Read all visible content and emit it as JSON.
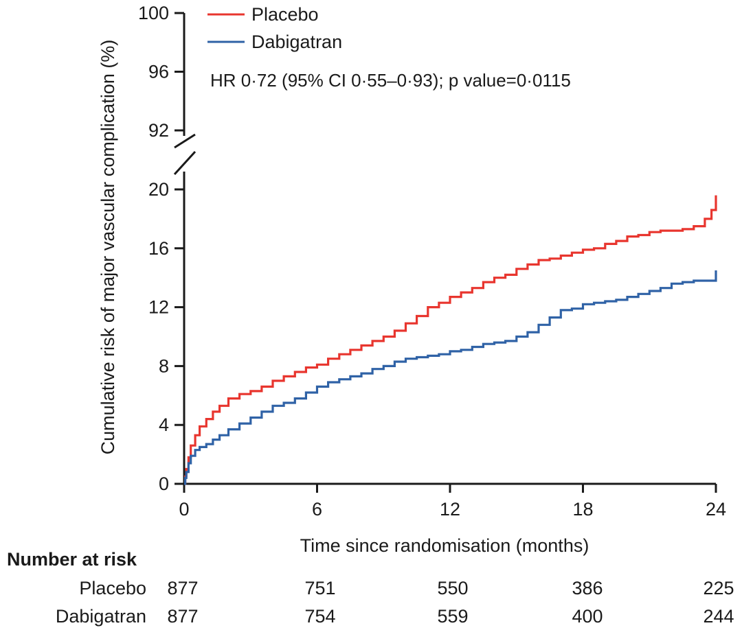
{
  "chart_data": {
    "type": "line",
    "subtype": "kaplan-meier-step",
    "title": "",
    "xlabel": "Time since randomisation (months)",
    "ylabel": "Cumulative risk of major vascular complication (%)",
    "xlim": [
      0,
      24
    ],
    "ylim_lower": [
      0,
      20
    ],
    "ylim_upper": [
      92,
      100
    ],
    "axis_break": true,
    "x_ticks": [
      "0",
      "6",
      "12",
      "18",
      "24"
    ],
    "x_tick_values": [
      0,
      6,
      12,
      18,
      24
    ],
    "y_ticks_lower": [
      "0",
      "4",
      "8",
      "12",
      "16",
      "20"
    ],
    "y_tick_values_lower": [
      0,
      4,
      8,
      12,
      16,
      20
    ],
    "y_ticks_upper": [
      "92",
      "96",
      "100"
    ],
    "y_tick_values_upper": [
      92,
      96,
      100
    ],
    "legend_position": "top-left",
    "annotation": "HR 0·72 (95% CI 0·55–0·93); p value=0·0115",
    "series": [
      {
        "name": "Placebo",
        "color": "#e8352e",
        "x": [
          0,
          0.05,
          0.1,
          0.2,
          0.3,
          0.5,
          0.7,
          1.0,
          1.3,
          1.6,
          2.0,
          2.5,
          3.0,
          3.5,
          4.0,
          4.5,
          5.0,
          5.5,
          6.0,
          6.5,
          7.0,
          7.5,
          8.0,
          8.5,
          9.0,
          9.5,
          10.0,
          10.5,
          11.0,
          11.5,
          12.0,
          12.5,
          13.0,
          13.5,
          14.0,
          14.5,
          15.0,
          15.5,
          16.0,
          16.5,
          17.0,
          17.5,
          18.0,
          18.5,
          19.0,
          19.5,
          20.0,
          20.5,
          21.0,
          21.5,
          22.0,
          22.5,
          23.0,
          23.5,
          23.8,
          24.0
        ],
        "y": [
          0,
          0.5,
          1.0,
          1.8,
          2.6,
          3.3,
          3.9,
          4.4,
          4.9,
          5.3,
          5.8,
          6.1,
          6.3,
          6.6,
          7.0,
          7.3,
          7.6,
          7.9,
          8.1,
          8.5,
          8.8,
          9.1,
          9.4,
          9.7,
          10.0,
          10.4,
          10.9,
          11.4,
          12.0,
          12.3,
          12.7,
          13.0,
          13.3,
          13.7,
          14.0,
          14.2,
          14.6,
          14.9,
          15.2,
          15.3,
          15.5,
          15.7,
          15.9,
          16.0,
          16.3,
          16.5,
          16.8,
          16.9,
          17.1,
          17.2,
          17.2,
          17.3,
          17.5,
          18.0,
          18.6,
          19.6
        ]
      },
      {
        "name": "Dabigatran",
        "color": "#2f62a6",
        "x": [
          0,
          0.05,
          0.1,
          0.2,
          0.3,
          0.5,
          0.7,
          1.0,
          1.3,
          1.6,
          2.0,
          2.5,
          3.0,
          3.5,
          4.0,
          4.5,
          5.0,
          5.5,
          6.0,
          6.5,
          7.0,
          7.5,
          8.0,
          8.5,
          9.0,
          9.5,
          10.0,
          10.5,
          11.0,
          11.5,
          12.0,
          12.5,
          13.0,
          13.5,
          14.0,
          14.5,
          15.0,
          15.5,
          16.0,
          16.5,
          17.0,
          17.5,
          18.0,
          18.5,
          19.0,
          19.5,
          20.0,
          20.5,
          21.0,
          21.5,
          22.0,
          22.5,
          23.0,
          23.5,
          24.0
        ],
        "y": [
          0,
          0.4,
          0.8,
          1.4,
          1.9,
          2.3,
          2.5,
          2.7,
          3.0,
          3.3,
          3.7,
          4.1,
          4.5,
          4.9,
          5.3,
          5.5,
          5.8,
          6.2,
          6.6,
          6.9,
          7.1,
          7.3,
          7.5,
          7.8,
          8.0,
          8.3,
          8.5,
          8.6,
          8.7,
          8.8,
          9.0,
          9.1,
          9.3,
          9.5,
          9.6,
          9.7,
          10.0,
          10.3,
          10.8,
          11.3,
          11.8,
          11.9,
          12.2,
          12.3,
          12.4,
          12.5,
          12.7,
          12.9,
          13.1,
          13.3,
          13.6,
          13.7,
          13.8,
          13.8,
          14.5
        ]
      }
    ],
    "number_at_risk": {
      "title": "Number at risk",
      "rows": [
        {
          "label": "Placebo",
          "values": [
            "877",
            "751",
            "550",
            "386",
            "225"
          ]
        },
        {
          "label": "Dabigatran",
          "values": [
            "877",
            "754",
            "559",
            "400",
            "244"
          ]
        }
      ]
    }
  }
}
